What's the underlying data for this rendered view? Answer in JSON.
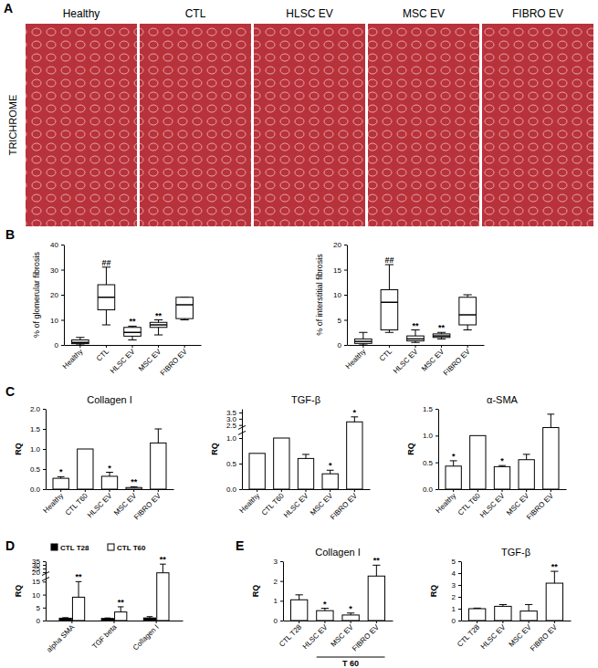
{
  "image_panel": {
    "panel_label": "A",
    "stain": "TRICHROME",
    "titles": [
      "Healthy",
      "CTL",
      "HLSC EV",
      "MSC EV",
      "FIBRO EV"
    ]
  },
  "chart_data": [
    {
      "type": "box",
      "panel_label": "B",
      "y_label": "% of glomerular fibrosis",
      "categories": [
        "Healthy",
        "CTL",
        "HLSC EV",
        "MSC EV",
        "FIBRO EV"
      ],
      "min": [
        0,
        8,
        2,
        4,
        10
      ],
      "q1": [
        0.5,
        14,
        3.5,
        7,
        10.5
      ],
      "median": [
        1,
        19,
        5,
        8,
        16
      ],
      "q3": [
        2,
        24,
        7,
        9,
        19
      ],
      "max": [
        3,
        31,
        7.5,
        10,
        19
      ],
      "annotations": [
        null,
        "##",
        "**",
        "**",
        null
      ],
      "ylim": [
        0,
        40
      ],
      "yticks": [
        0,
        10,
        20,
        30,
        40
      ]
    },
    {
      "type": "box",
      "y_label": "% of interstitial fibrosis",
      "categories": [
        "Healthy",
        "CTL",
        "HLSC EV",
        "MSC EV",
        "FIBRO EV"
      ],
      "min": [
        0,
        2.5,
        0.5,
        1.2,
        3
      ],
      "q1": [
        0.3,
        3,
        0.8,
        1.5,
        4
      ],
      "median": [
        0.7,
        8.5,
        1.2,
        1.8,
        6
      ],
      "q3": [
        1.2,
        11,
        1.8,
        2.2,
        9.5
      ],
      "max": [
        2.5,
        16,
        3,
        2.5,
        10
      ],
      "annotations": [
        null,
        "##",
        "**",
        "**",
        null
      ],
      "ylim": [
        0,
        20
      ],
      "yticks": [
        0,
        5,
        10,
        15,
        20
      ]
    },
    {
      "type": "bar",
      "panel_label": "C",
      "title": "Collagen I",
      "y_label": "RQ",
      "categories": [
        "Healthy",
        "CTL T60",
        "HLSC EV",
        "MSC EV",
        "FIBRO EV"
      ],
      "values": [
        0.27,
        1,
        0.32,
        0.04,
        1.15
      ],
      "errors": [
        0.04,
        null,
        0.1,
        0.02,
        0.35
      ],
      "annotations": [
        "*",
        null,
        "*",
        "**",
        null
      ],
      "color": "#ffffff",
      "ylim": [
        0,
        2
      ],
      "yticks": [
        {
          "value": 0,
          "label": "0.0"
        },
        {
          "value": 0.5,
          "label": "0.5"
        },
        {
          "value": 1,
          "label": "1.0"
        },
        {
          "value": 1.5,
          "label": "1.5"
        },
        {
          "value": 2,
          "label": "2.0"
        }
      ]
    },
    {
      "type": "bar",
      "title": "TGF-β",
      "y_label": "RQ",
      "categories": [
        "Healthy",
        "CTL T60",
        "HLSC EV",
        "MSC EV",
        "FIBRO EV"
      ],
      "values": [
        0.7,
        1,
        0.6,
        0.3,
        2.75
      ],
      "errors": [
        null,
        null,
        0.08,
        0.07,
        0.4
      ],
      "annotations": [
        null,
        null,
        null,
        "*",
        "*"
      ],
      "color": "#ffffff",
      "ylim": [
        0,
        3.8
      ],
      "ybreak": [
        1.1,
        2.3
      ],
      "yticks": [
        {
          "value": 0,
          "label": "0.0"
        },
        {
          "value": 0.5,
          "label": "0.5"
        },
        {
          "value": 1,
          "label": "1.0"
        },
        {
          "value": 2.5,
          "label": "2.5"
        },
        {
          "value": 3,
          "label": "3.0"
        },
        {
          "value": 3.5,
          "label": "3.5"
        }
      ]
    },
    {
      "type": "bar",
      "title": "α-SMA",
      "y_label": "RQ",
      "categories": [
        "Healthy",
        "CTL T60",
        "HLSC EV",
        "MSC EV",
        "FIBRO EV"
      ],
      "values": [
        0.43,
        1,
        0.42,
        0.55,
        1.15
      ],
      "errors": [
        0.1,
        null,
        0.02,
        0.1,
        0.25
      ],
      "annotations": [
        "*",
        null,
        "*",
        null,
        null
      ],
      "color": "#ffffff",
      "ylim": [
        0,
        1.5
      ],
      "yticks": [
        {
          "value": 0,
          "label": "0.0"
        },
        {
          "value": 0.5,
          "label": "0.5"
        },
        {
          "value": 1,
          "label": "1.0"
        },
        {
          "value": 1.5,
          "label": "1.5"
        }
      ]
    },
    {
      "type": "bar",
      "panel_label": "D",
      "y_label": "RQ",
      "categories": [
        "alpha SMA",
        "TGF beta",
        "Collagen I"
      ],
      "series": [
        {
          "name": "CTL T28",
          "color": "#000000",
          "values": [
            0.9,
            0.8,
            1.0
          ],
          "errors": [
            0.2,
            0.2,
            0.5
          ]
        },
        {
          "name": "CTL T60",
          "color": "#ffffff",
          "values": [
            9,
            3.3,
            19
          ],
          "errors": [
            6,
            2,
            12
          ],
          "annotations": [
            "**",
            "**",
            "**"
          ]
        }
      ],
      "legend": "top-left",
      "ylim": [
        0,
        35
      ],
      "ybreak": [
        16,
        18
      ],
      "yticks": [
        0,
        5,
        10,
        15,
        20,
        25,
        30,
        35
      ]
    },
    {
      "type": "bar",
      "panel_label": "E",
      "title": "Collagen I",
      "y_label": "RQ",
      "categories": [
        "CTL T28",
        "HLSC EV",
        "MSC EV",
        "FIBRO EV"
      ],
      "values": [
        1.05,
        0.5,
        0.28,
        2.25
      ],
      "errors": [
        0.25,
        0.12,
        0.1,
        0.55
      ],
      "annotations": [
        null,
        "*",
        "*",
        "**"
      ],
      "color": "#ffffff",
      "group_label": {
        "text": "T 60",
        "members": [
          false,
          true,
          true,
          true
        ]
      },
      "ylim": [
        0,
        3
      ],
      "yticks": [
        0,
        1,
        2,
        3
      ]
    },
    {
      "type": "bar",
      "title": "TGF-β",
      "y_label": "RQ",
      "categories": [
        "CTL T28",
        "HLSC EV",
        "MSC EV",
        "FIBRO EV"
      ],
      "values": [
        1.0,
        1.2,
        0.8,
        3.15
      ],
      "errors": [
        0.05,
        0.15,
        0.55,
        1.0
      ],
      "annotations": [
        null,
        null,
        null,
        "**"
      ],
      "color": "#ffffff",
      "ylim": [
        0,
        5
      ],
      "yticks": [
        0,
        1,
        2,
        3,
        4,
        5
      ]
    }
  ]
}
